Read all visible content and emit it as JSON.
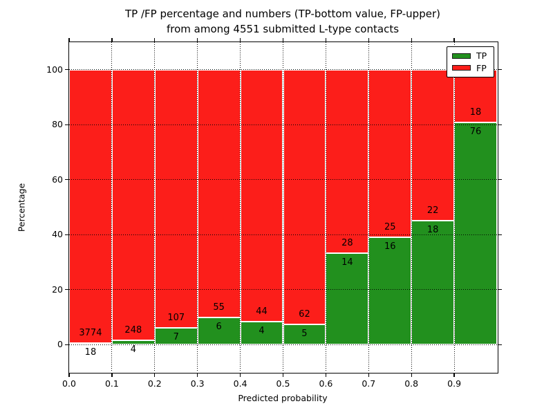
{
  "figure": {
    "title_line1": "TP /FP percentage and numbers (TP-bottom value, FP-upper)",
    "title_line2": "from among 4551 submitted L-type contacts"
  },
  "chart_data": {
    "type": "bar",
    "stacked": true,
    "title": "TP /FP percentage and numbers (TP-bottom value, FP-upper) from among 4551 submitted L-type contacts",
    "xlabel": "Predicted probability",
    "ylabel": "Percentage",
    "xlim": [
      0.0,
      1.0
    ],
    "ylim": [
      -10,
      110
    ],
    "bin_width": 0.1,
    "x_bin_start": [
      0.0,
      0.1,
      0.2,
      0.3,
      0.4,
      0.5,
      0.6,
      0.7,
      0.8,
      0.9
    ],
    "xtick_labels": [
      "0.0",
      "0.1",
      "0.2",
      "0.3",
      "0.4",
      "0.5",
      "0.6",
      "0.7",
      "0.8",
      "0.9"
    ],
    "ytick_values": [
      0,
      20,
      40,
      60,
      80,
      100
    ],
    "series": [
      {
        "name": "TP",
        "color": "#22901e",
        "counts": [
          18,
          4,
          7,
          6,
          4,
          5,
          14,
          16,
          18,
          76
        ]
      },
      {
        "name": "FP",
        "color": "#fc1e1a",
        "counts": [
          3774,
          248,
          107,
          55,
          44,
          62,
          28,
          25,
          22,
          18
        ]
      }
    ],
    "tp_percent_by_bin": [
      0.47,
      1.59,
      6.14,
      9.84,
      8.33,
      7.46,
      33.33,
      39.02,
      45.0,
      80.85
    ],
    "total_submitted": 4551,
    "grid": "dotted",
    "legend": {
      "position": "upper right",
      "entries": [
        {
          "label": "TP",
          "color": "#22901e"
        },
        {
          "label": "FP",
          "color": "#fc1e1a"
        }
      ]
    }
  },
  "colors": {
    "tp_green": "#22901e",
    "fp_red": "#fc1e1a",
    "background": "#ffffff",
    "frame": "#000000"
  }
}
